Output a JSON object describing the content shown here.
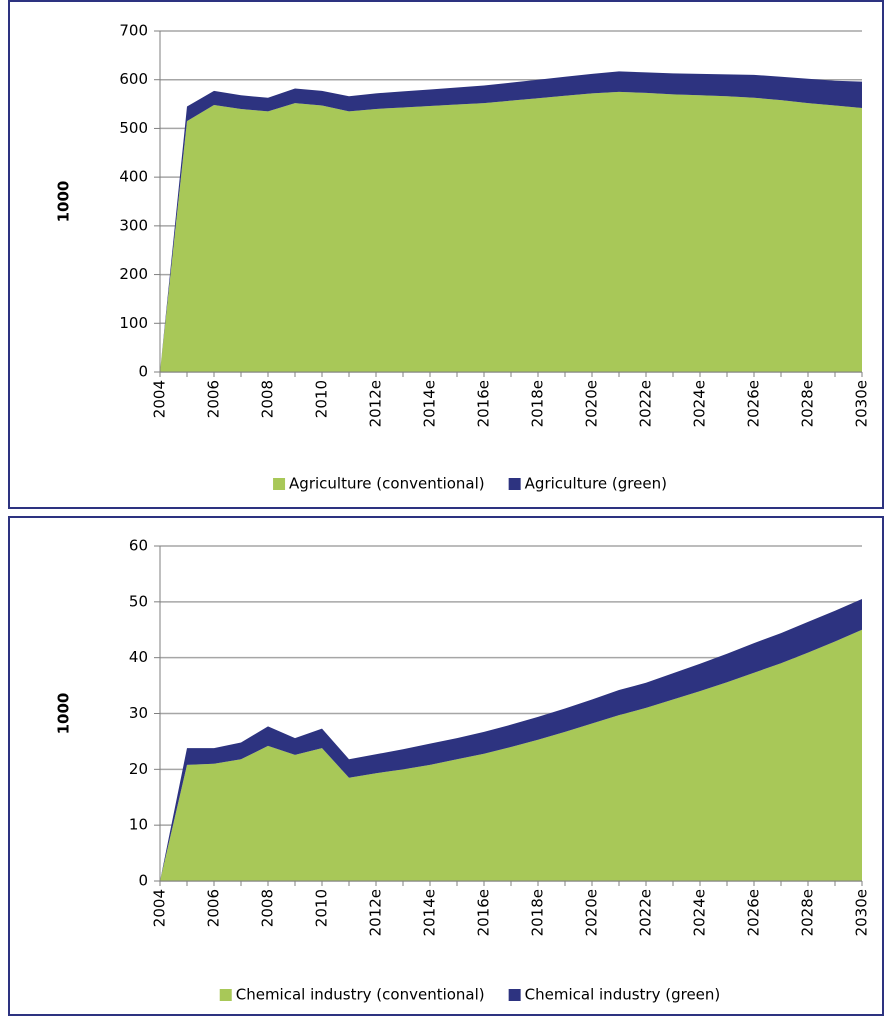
{
  "chart_data": [
    {
      "type": "area",
      "stacked": true,
      "ylabel": "1000",
      "categories": [
        "2004",
        null,
        "2006",
        null,
        "2008",
        null,
        "2010",
        null,
        "2012e",
        null,
        "2014e",
        null,
        "2016e",
        null,
        "2018e",
        null,
        "2020e",
        null,
        "2022e",
        null,
        "2024e",
        null,
        "2026e",
        null,
        "2028e",
        null,
        "2030e"
      ],
      "series": [
        {
          "name": "Agriculture (conventional)",
          "color": "#a8c858",
          "values": [
            0,
            515,
            548,
            540,
            535,
            552,
            547,
            535,
            540,
            543,
            546,
            549,
            552,
            557,
            562,
            567,
            572,
            575,
            573,
            570,
            568,
            566,
            563,
            558,
            552,
            547,
            542
          ]
        },
        {
          "name": "Agriculture (green)",
          "color": "#2d3380",
          "values": [
            0,
            30,
            29,
            28,
            28,
            30,
            30,
            31,
            32,
            33,
            34,
            35,
            36,
            37,
            38,
            39,
            40,
            42,
            42,
            43,
            44,
            45,
            47,
            48,
            50,
            51,
            54
          ]
        }
      ],
      "ylim": [
        0,
        700
      ],
      "yticks": [
        0,
        100,
        200,
        300,
        400,
        500,
        600,
        700
      ],
      "grid": true,
      "legend": "bottom"
    },
    {
      "type": "area",
      "stacked": true,
      "ylabel": "1000",
      "categories": [
        "2004",
        null,
        "2006",
        null,
        "2008",
        null,
        "2010",
        null,
        "2012e",
        null,
        "2014e",
        null,
        "2016e",
        null,
        "2018e",
        null,
        "2020e",
        null,
        "2022e",
        null,
        "2024e",
        null,
        "2026e",
        null,
        "2028e",
        null,
        "2030e"
      ],
      "series": [
        {
          "name": "Chemical industry (conventional)",
          "color": "#a8c858",
          "values": [
            0,
            20.8,
            21,
            21.8,
            24.2,
            22.6,
            23.8,
            18.5,
            19.3,
            20,
            20.8,
            21.8,
            22.8,
            24,
            25.3,
            26.7,
            28.2,
            29.7,
            31,
            32.5,
            34,
            35.6,
            37.3,
            39,
            40.9,
            42.9,
            45
          ]
        },
        {
          "name": "Chemical industry (green)",
          "color": "#2d3380",
          "values": [
            0,
            3,
            2.8,
            3,
            3.5,
            3,
            3.5,
            3.3,
            3.4,
            3.6,
            3.8,
            3.8,
            3.9,
            4,
            4.1,
            4.2,
            4.3,
            4.5,
            4.5,
            4.7,
            4.9,
            5.1,
            5.3,
            5.4,
            5.5,
            5.5,
            5.5
          ]
        }
      ],
      "ylim": [
        0,
        60
      ],
      "yticks": [
        0,
        10,
        20,
        30,
        40,
        50,
        60
      ],
      "grid": true,
      "legend": "bottom"
    }
  ]
}
